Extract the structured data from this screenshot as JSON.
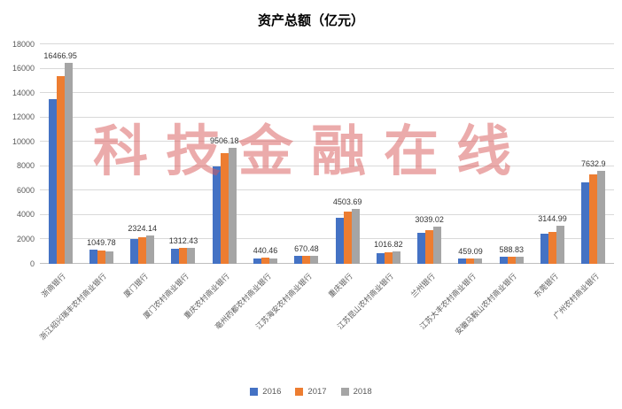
{
  "chart": {
    "title": "资产总额（亿元）",
    "watermark": "科技金融在线"
  },
  "chart_data": {
    "type": "bar",
    "title": "资产总额（亿元）",
    "categories": [
      "浙商银行",
      "浙江绍兴瑞丰农村商业银行",
      "厦门银行",
      "厦门农村商业银行",
      "重庆农村商业银行",
      "亳州药都农村商业银行",
      "江苏海安农村商业银行",
      "重庆银行",
      "江苏昆山农村商业银行",
      "兰州银行",
      "江苏大丰农村商业银行",
      "安徽马鞍山农村商业银行",
      "东莞银行",
      "广州农村商业银行"
    ],
    "series": [
      {
        "name": "2016",
        "color": "#4472C4",
        "values": [
          13500,
          1150,
          2050,
          1240,
          7950,
          470,
          620,
          3750,
          880,
          2550,
          420,
          560,
          2450,
          6650
        ]
      },
      {
        "name": "2017",
        "color": "#ED7D31",
        "values": [
          15400,
          1120,
          2200,
          1300,
          9100,
          490,
          660,
          4250,
          950,
          2750,
          450,
          600,
          2650,
          7350
        ]
      },
      {
        "name": "2018",
        "color": "#A5A5A5",
        "values": [
          16466.95,
          1049.78,
          2324.14,
          1312.43,
          9506.18,
          440.46,
          670.48,
          4503.69,
          1016.82,
          3039.02,
          459.09,
          588.83,
          3144.99,
          7632.9
        ]
      }
    ],
    "data_labels": [
      "16466.95",
      "1049.78",
      "2324.14",
      "1312.43",
      "9506.18",
      "440.46",
      "670.48",
      "4503.69",
      "1016.82",
      "3039.02",
      "459.09",
      "588.83",
      "3144.99",
      "7632.9"
    ],
    "data_label_series": "2018",
    "ylim": [
      0,
      18000
    ],
    "y_step": 2000,
    "grid": true,
    "legend_position": "bottom",
    "watermark_text": "科技金融在线",
    "colors": {
      "watermark": "#D95A5A",
      "grid": "#D9D9D9",
      "axis": "#BFBFBF",
      "axis_text": "#595959",
      "label_text": "#333333"
    }
  }
}
